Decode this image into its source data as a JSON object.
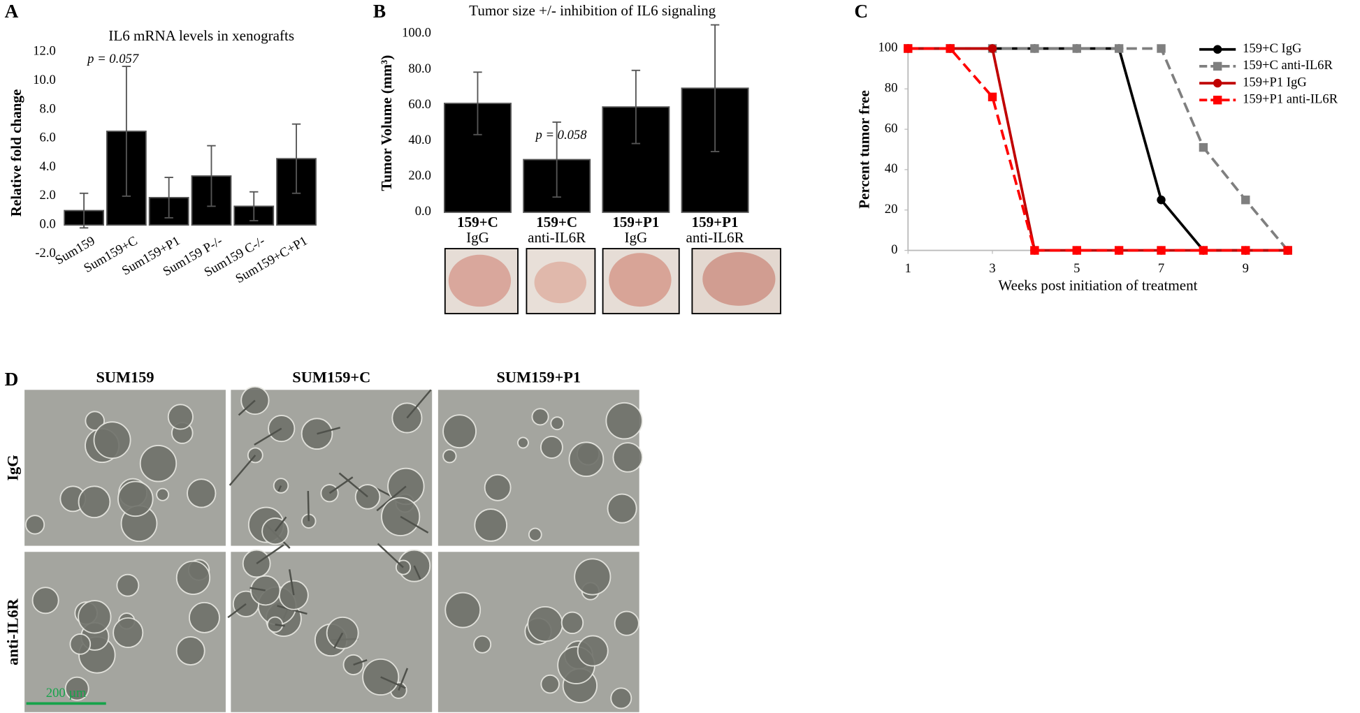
{
  "chart_data": [
    {
      "type": "bar",
      "panel_label": "A",
      "title": "IL6 mRNA levels in xenografts",
      "ylabel": "Relative fold change",
      "categories": [
        "Sum159",
        "Sum159+C",
        "Sum159+P1",
        "Sum159 P-/-",
        "Sum159 C-/-",
        "Sum159+C+P1"
      ],
      "values": [
        1.0,
        6.5,
        1.9,
        3.4,
        1.3,
        4.6
      ],
      "errors": [
        1.2,
        4.5,
        1.4,
        2.1,
        1.0,
        2.4
      ],
      "color": "#000000",
      "ylim": [
        -2,
        12
      ],
      "yticks": [
        {
          "value": -2,
          "label": "-2.0"
        },
        {
          "value": 0,
          "label": "0.0"
        },
        {
          "value": 2,
          "label": "2.0"
        },
        {
          "value": 4,
          "label": "4.0"
        },
        {
          "value": 6,
          "label": "6.0"
        },
        {
          "value": 8,
          "label": "8.0"
        },
        {
          "value": 10,
          "label": "10.0"
        },
        {
          "value": 12,
          "label": "12.0"
        }
      ],
      "annotation": "p = 0.057"
    },
    {
      "type": "bar",
      "panel_label": "B",
      "title": "Tumor size +/- inhibition of IL6 signaling",
      "ylabel": "Tumor Volume (mm³)",
      "categories": [
        [
          "159+C",
          "IgG"
        ],
        [
          "159+C",
          "anti-IL6R"
        ],
        [
          "159+P1",
          "IgG"
        ],
        [
          "159+P1",
          "anti-IL6R"
        ]
      ],
      "values": [
        61,
        29.5,
        59,
        69.5
      ],
      "errors": [
        17.5,
        21,
        20.5,
        35.5
      ],
      "color": "#000000",
      "ylim": [
        0,
        100
      ],
      "yticks": [
        {
          "value": 0,
          "label": "0.0"
        },
        {
          "value": 20,
          "label": "20.0"
        },
        {
          "value": 40,
          "label": "40.0"
        },
        {
          "value": 60,
          "label": "60.0"
        },
        {
          "value": 80,
          "label": "80.0"
        },
        {
          "value": 100,
          "label": "100.0"
        }
      ],
      "annotation": "p = 0.058"
    },
    {
      "type": "line",
      "panel_label": "C",
      "xlabel": "Weeks post initiation of treatment",
      "ylabel": "Percent tumor free",
      "x": [
        1,
        2,
        3,
        4,
        5,
        6,
        7,
        8,
        9,
        10
      ],
      "xlim": [
        1,
        10
      ],
      "xticks": [
        1,
        3,
        5,
        7,
        9
      ],
      "ylim": [
        0,
        100
      ],
      "yticks": [
        0,
        20,
        40,
        60,
        80,
        100
      ],
      "legend": "upper right",
      "series": [
        {
          "name": "159+C IgG",
          "color": "#000000",
          "dashed": false,
          "marker": "circle",
          "values": [
            100,
            100,
            100,
            100,
            100,
            100,
            25,
            0,
            0,
            0
          ]
        },
        {
          "name": "159+C anti-IL6R",
          "color": "#7f7f7f",
          "dashed": true,
          "marker": "square",
          "values": [
            100,
            100,
            100,
            100,
            100,
            100,
            100,
            51,
            25,
            0
          ]
        },
        {
          "name": "159+P1 IgG",
          "color": "#c00000",
          "dashed": false,
          "marker": "circle",
          "values": [
            100,
            100,
            100,
            0,
            0,
            0,
            0,
            0,
            0,
            0
          ]
        },
        {
          "name": "159+P1 anti-IL6R",
          "color": "#ff0000",
          "dashed": true,
          "marker": "square",
          "values": [
            100,
            100,
            76,
            0,
            0,
            0,
            0,
            0,
            0,
            0
          ]
        }
      ]
    }
  ],
  "panel_d": {
    "panel_label": "D",
    "columns": [
      "SUM159",
      "SUM159+C",
      "SUM159+P1"
    ],
    "rows": [
      "IgG",
      "anti-IL6R"
    ],
    "scale_bar": "200 µm"
  }
}
